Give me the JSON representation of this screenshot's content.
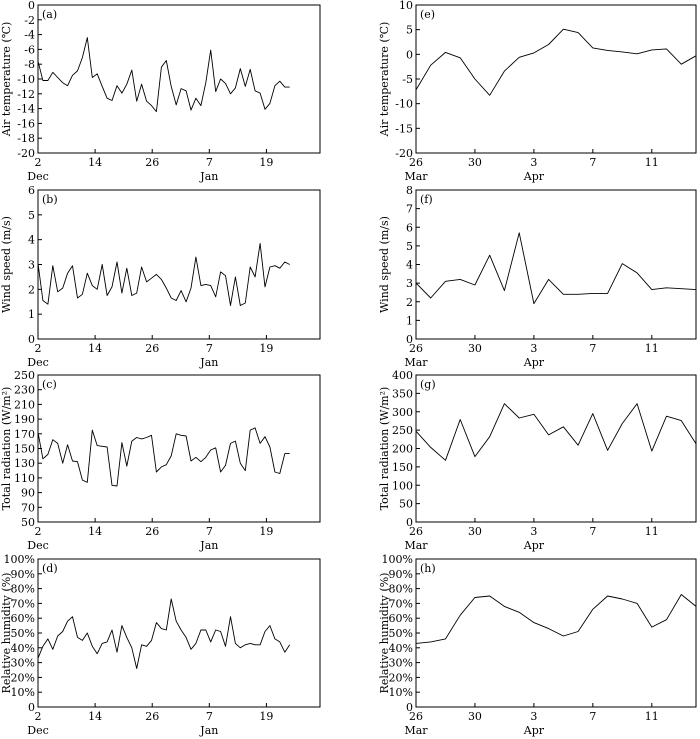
{
  "chart_data": [
    {
      "panel": "(a)",
      "type": "line",
      "ylabel": "Air temperature (℃)",
      "ylim": [
        -20,
        0
      ],
      "yticks": [
        -20,
        -18,
        -16,
        -14,
        -12,
        -10,
        -8,
        -6,
        -4,
        -2,
        0
      ],
      "xlim": [
        2,
        22
      ],
      "xticks": [
        {
          "v": 2,
          "label": "2"
        },
        {
          "v": 6.05,
          "label": "14"
        },
        {
          "v": 10.1,
          "label": "26"
        },
        {
          "v": 14.15,
          "label": "7"
        },
        {
          "v": 18.2,
          "label": "19"
        }
      ],
      "months": [
        {
          "v": 2,
          "label": "Dec"
        },
        {
          "v": 14.15,
          "label": "Jan"
        }
      ],
      "x": [
        2,
        2.35,
        2.7,
        3.05,
        3.4,
        3.75,
        4.1,
        4.45,
        4.8,
        5.15,
        5.5,
        5.85,
        6.2,
        6.55,
        6.9,
        7.25,
        7.6,
        7.95,
        8.3,
        8.65,
        9,
        9.35,
        9.7,
        10.05,
        10.4,
        10.75,
        11.1,
        11.45,
        11.8,
        12.15,
        12.5,
        12.85,
        13.2,
        13.55,
        13.9,
        14.25,
        14.6,
        14.95,
        15.3,
        15.65,
        16,
        16.35,
        16.7,
        17.05,
        17.4,
        17.75,
        18.1,
        18.45,
        18.8,
        19.15,
        19.5,
        19.85
      ],
      "y": [
        -7.6,
        -10.2,
        -10.2,
        -9.1,
        -9.8,
        -10.5,
        -10.9,
        -9.5,
        -8.9,
        -7.1,
        -4.4,
        -9.8,
        -9.3,
        -11,
        -12.6,
        -12.9,
        -10.9,
        -11.9,
        -10.7,
        -8.8,
        -13,
        -10.7,
        -13,
        -13.6,
        -14.4,
        -8.4,
        -7.5,
        -11,
        -13.5,
        -11.3,
        -11.6,
        -14.2,
        -12.6,
        -13.6,
        -10.5,
        -6.1,
        -11.7,
        -10,
        -10.6,
        -12,
        -11.2,
        -8.6,
        -11,
        -8.7,
        -11.6,
        -11.9,
        -14.1,
        -13.3,
        -10.9,
        -10.3,
        -11.1,
        -11.1
      ]
    },
    {
      "panel": "(b)",
      "type": "line",
      "ylabel": "Wind speed (m/s)",
      "ylim": [
        0,
        6
      ],
      "yticks": [
        0,
        1,
        2,
        3,
        4,
        5,
        6
      ],
      "xlim": [
        2,
        22
      ],
      "xticks": [
        {
          "v": 2,
          "label": "2"
        },
        {
          "v": 6.05,
          "label": "14"
        },
        {
          "v": 10.1,
          "label": "26"
        },
        {
          "v": 14.15,
          "label": "7"
        },
        {
          "v": 18.2,
          "label": "19"
        }
      ],
      "months": [
        {
          "v": 2,
          "label": "Dec"
        },
        {
          "v": 14.15,
          "label": "Jan"
        }
      ],
      "x": [
        2,
        2.35,
        2.7,
        3.05,
        3.4,
        3.75,
        4.1,
        4.45,
        4.8,
        5.15,
        5.5,
        5.85,
        6.2,
        6.55,
        6.9,
        7.25,
        7.6,
        7.95,
        8.3,
        8.65,
        9,
        9.35,
        9.7,
        10.05,
        10.4,
        10.75,
        11.1,
        11.45,
        11.8,
        12.15,
        12.5,
        12.85,
        13.2,
        13.55,
        13.9,
        14.25,
        14.6,
        14.95,
        15.3,
        15.65,
        16,
        16.35,
        16.7,
        17.05,
        17.4,
        17.75,
        18.1,
        18.45,
        18.8,
        19.15,
        19.5,
        19.85
      ],
      "y": [
        3.05,
        1.55,
        1.4,
        2.95,
        1.9,
        2.05,
        2.65,
        2.95,
        1.65,
        1.8,
        2.65,
        2.15,
        2.0,
        3.0,
        1.75,
        2.1,
        3.1,
        1.85,
        2.85,
        1.75,
        1.85,
        2.9,
        2.3,
        2.45,
        2.6,
        2.4,
        2.05,
        1.65,
        1.55,
        1.95,
        1.5,
        2.05,
        3.3,
        2.15,
        2.2,
        2.15,
        1.7,
        2.7,
        2.55,
        1.35,
        2.5,
        1.35,
        1.45,
        2.9,
        2.5,
        3.85,
        2.1,
        2.9,
        2.95,
        2.85,
        3.1,
        3.0
      ]
    },
    {
      "panel": "(c)",
      "type": "line",
      "ylabel": "Total radiation (W/m²)",
      "ylim": [
        50,
        250
      ],
      "yticks": [
        50,
        70,
        90,
        110,
        130,
        150,
        170,
        190,
        210,
        230,
        250
      ],
      "xlim": [
        2,
        22
      ],
      "xticks": [
        {
          "v": 2,
          "label": "2"
        },
        {
          "v": 6.05,
          "label": "14"
        },
        {
          "v": 10.1,
          "label": "26"
        },
        {
          "v": 14.15,
          "label": "7"
        },
        {
          "v": 18.2,
          "label": "19"
        }
      ],
      "months": [
        {
          "v": 2,
          "label": "Dec"
        },
        {
          "v": 14.15,
          "label": "Jan"
        }
      ],
      "x": [
        2,
        2.35,
        2.7,
        3.05,
        3.4,
        3.75,
        4.1,
        4.45,
        4.8,
        5.15,
        5.5,
        5.85,
        6.2,
        6.55,
        6.9,
        7.25,
        7.6,
        7.95,
        8.3,
        8.65,
        9,
        9.35,
        9.7,
        10.05,
        10.4,
        10.75,
        11.1,
        11.45,
        11.8,
        12.15,
        12.5,
        12.85,
        13.2,
        13.55,
        13.9,
        14.25,
        14.6,
        14.95,
        15.3,
        15.65,
        16,
        16.35,
        16.7,
        17.05,
        17.4,
        17.75,
        18.1,
        18.45,
        18.8,
        19.15,
        19.5,
        19.85
      ],
      "y": [
        172,
        136,
        142,
        162,
        157,
        130,
        155,
        133,
        132,
        107,
        104,
        175,
        154,
        153,
        152,
        100,
        99,
        158,
        126,
        160,
        165,
        163,
        165,
        168,
        118,
        125,
        128,
        140,
        170,
        168,
        167,
        133,
        138,
        132,
        138,
        148,
        151,
        118,
        127,
        157,
        160,
        130,
        120,
        175,
        178,
        157,
        166,
        152,
        118,
        116,
        143,
        143
      ]
    },
    {
      "panel": "(d)",
      "type": "line",
      "ylabel": "Relative humidity (%)",
      "ylim": [
        0,
        100
      ],
      "yticks": [
        0,
        10,
        20,
        30,
        40,
        50,
        60,
        70,
        80,
        90,
        100
      ],
      "yticklabels": [
        "0",
        "10%",
        "20%",
        "30%",
        "40%",
        "50%",
        "60%",
        "70%",
        "80%",
        "90%",
        "100%"
      ],
      "xlim": [
        2,
        22
      ],
      "xticks": [
        {
          "v": 2,
          "label": "2"
        },
        {
          "v": 6.05,
          "label": "14"
        },
        {
          "v": 10.1,
          "label": "26"
        },
        {
          "v": 14.15,
          "label": "7"
        },
        {
          "v": 18.2,
          "label": "19"
        }
      ],
      "months": [
        {
          "v": 2,
          "label": "Dec"
        },
        {
          "v": 14.15,
          "label": "Jan"
        }
      ],
      "x": [
        2,
        2.35,
        2.7,
        3.05,
        3.4,
        3.75,
        4.1,
        4.45,
        4.8,
        5.15,
        5.5,
        5.85,
        6.2,
        6.55,
        6.9,
        7.25,
        7.6,
        7.95,
        8.3,
        8.65,
        9,
        9.35,
        9.7,
        10.05,
        10.4,
        10.75,
        11.1,
        11.45,
        11.8,
        12.15,
        12.5,
        12.85,
        13.2,
        13.55,
        13.9,
        14.25,
        14.6,
        14.95,
        15.3,
        15.65,
        16,
        16.35,
        16.7,
        17.05,
        17.4,
        17.75,
        18.1,
        18.45,
        18.8,
        19.15,
        19.5,
        19.85
      ],
      "y": [
        33,
        41,
        46,
        39,
        48,
        51,
        58,
        61,
        47,
        45,
        50,
        41,
        36,
        43,
        44,
        52,
        37,
        55,
        47,
        40,
        26,
        42,
        41,
        45,
        57,
        53,
        52,
        73,
        58,
        52,
        47,
        39,
        43,
        52,
        52,
        44,
        52,
        51,
        41,
        61,
        43,
        40,
        42,
        43,
        42,
        42,
        51,
        55,
        46,
        44,
        37,
        42
      ]
    },
    {
      "panel": "(e)",
      "type": "line",
      "ylabel": "Air temperature (℃)",
      "ylim": [
        -20,
        10
      ],
      "yticks": [
        -20,
        -15,
        -10,
        -5,
        0,
        5,
        10
      ],
      "xlim": [
        26,
        45
      ],
      "xticks": [
        {
          "v": 26,
          "label": "26"
        },
        {
          "v": 30,
          "label": "30"
        },
        {
          "v": 34,
          "label": "3"
        },
        {
          "v": 38,
          "label": "7"
        },
        {
          "v": 42,
          "label": "11"
        }
      ],
      "months": [
        {
          "v": 26,
          "label": "Mar"
        },
        {
          "v": 34,
          "label": "Apr"
        }
      ],
      "x": [
        26,
        27,
        28,
        29,
        30,
        31,
        32,
        33,
        34,
        35,
        36,
        37,
        38,
        39,
        40,
        41,
        42,
        43,
        44,
        45
      ],
      "y": [
        -7.2,
        -2.2,
        0.4,
        -0.7,
        -5.0,
        -8.3,
        -3.4,
        -0.6,
        0.3,
        2.0,
        5.1,
        4.4,
        1.3,
        0.8,
        0.5,
        0.1,
        0.9,
        1.1,
        -2.0,
        -0.3
      ]
    },
    {
      "panel": "(f)",
      "type": "line",
      "ylabel": "Wind speed (m/s)",
      "ylim": [
        0,
        8
      ],
      "yticks": [
        0,
        1,
        2,
        3,
        4,
        5,
        6,
        7,
        8
      ],
      "xlim": [
        26,
        45
      ],
      "xticks": [
        {
          "v": 26,
          "label": "26"
        },
        {
          "v": 30,
          "label": "30"
        },
        {
          "v": 34,
          "label": "3"
        },
        {
          "v": 38,
          "label": "7"
        },
        {
          "v": 42,
          "label": "11"
        }
      ],
      "months": [
        {
          "v": 26,
          "label": "Mar"
        },
        {
          "v": 34,
          "label": "Apr"
        }
      ],
      "x": [
        26,
        27,
        28,
        29,
        30,
        31,
        32,
        33,
        34,
        35,
        36,
        37,
        38,
        39,
        40,
        41,
        42,
        43,
        44,
        45
      ],
      "y": [
        3.0,
        2.2,
        3.1,
        3.2,
        2.9,
        4.5,
        2.6,
        5.7,
        1.9,
        3.2,
        2.4,
        2.4,
        2.45,
        2.45,
        4.05,
        3.55,
        2.65,
        2.75,
        2.7,
        2.65
      ]
    },
    {
      "panel": "(g)",
      "type": "line",
      "ylabel": "Total radiation (W/m²)",
      "ylim": [
        0,
        400
      ],
      "yticks": [
        0,
        50,
        100,
        150,
        200,
        250,
        300,
        350,
        400
      ],
      "xlim": [
        26,
        45
      ],
      "xticks": [
        {
          "v": 26,
          "label": "26"
        },
        {
          "v": 30,
          "label": "30"
        },
        {
          "v": 34,
          "label": "3"
        },
        {
          "v": 38,
          "label": "7"
        },
        {
          "v": 42,
          "label": "11"
        }
      ],
      "months": [
        {
          "v": 26,
          "label": "Mar"
        },
        {
          "v": 34,
          "label": "Apr"
        }
      ],
      "x": [
        26,
        27,
        28,
        29,
        30,
        31,
        32,
        33,
        34,
        35,
        36,
        37,
        38,
        39,
        40,
        41,
        42,
        43,
        44,
        45
      ],
      "y": [
        247,
        203,
        168,
        279,
        178,
        232,
        322,
        283,
        293,
        237,
        259,
        209,
        295,
        195,
        268,
        322,
        193,
        288,
        276,
        213
      ]
    },
    {
      "panel": "(h)",
      "type": "line",
      "ylabel": "Relative humidity (%)",
      "ylim": [
        0,
        100
      ],
      "yticks": [
        0,
        10,
        20,
        30,
        40,
        50,
        60,
        70,
        80,
        90,
        100
      ],
      "yticklabels": [
        "0",
        "10%",
        "20%",
        "30%",
        "40%",
        "50%",
        "60%",
        "70%",
        "80%",
        "90%",
        "100%"
      ],
      "xlim": [
        26,
        45
      ],
      "xticks": [
        {
          "v": 26,
          "label": "26"
        },
        {
          "v": 30,
          "label": "30"
        },
        {
          "v": 34,
          "label": "3"
        },
        {
          "v": 38,
          "label": "7"
        },
        {
          "v": 42,
          "label": "11"
        }
      ],
      "months": [
        {
          "v": 26,
          "label": "Mar"
        },
        {
          "v": 34,
          "label": "Apr"
        }
      ],
      "x": [
        26,
        27,
        28,
        29,
        30,
        31,
        32,
        33,
        34,
        35,
        36,
        37,
        38,
        39,
        40,
        41,
        42,
        43,
        44,
        45
      ],
      "y": [
        43,
        44,
        46,
        62,
        74,
        75,
        68,
        64,
        57,
        53,
        48,
        51,
        66,
        75,
        73,
        70,
        54,
        59,
        76,
        68
      ]
    }
  ]
}
